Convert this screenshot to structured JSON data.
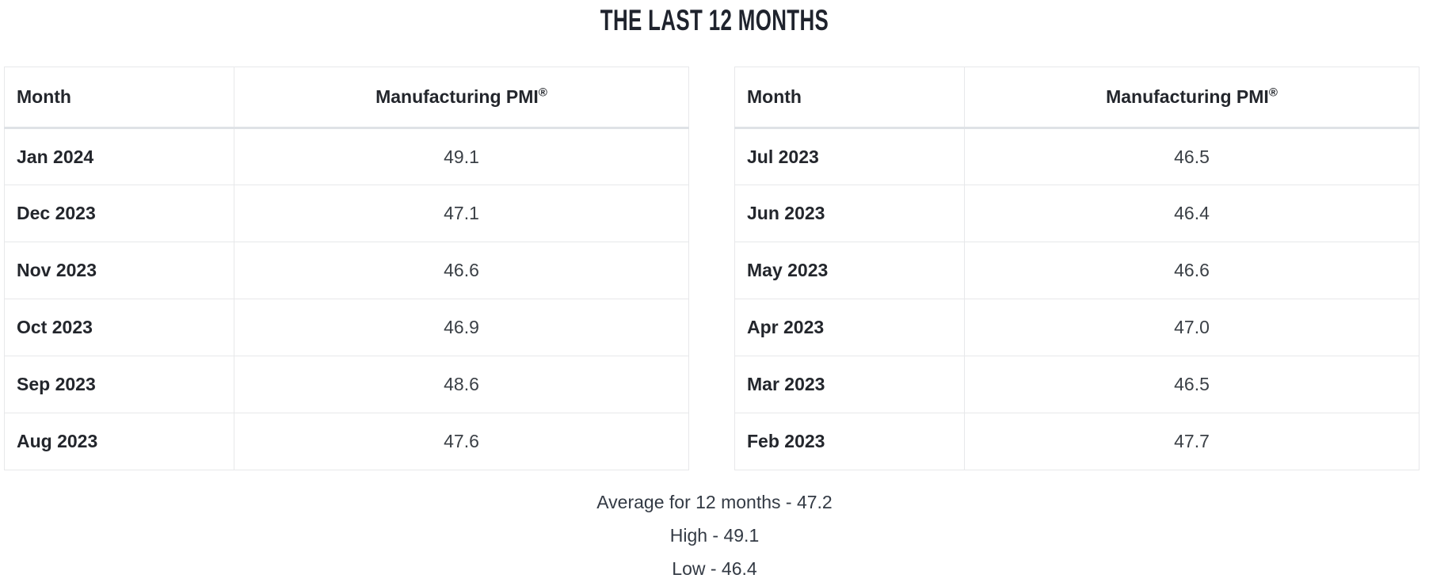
{
  "title": "THE LAST 12 MONTHS",
  "tables": {
    "left": {
      "headers": {
        "month": "Month",
        "pmi": "Manufacturing PMI",
        "trademark": "®"
      },
      "rows": [
        {
          "month": "Jan 2024",
          "value": "49.1"
        },
        {
          "month": "Dec 2023",
          "value": "47.1"
        },
        {
          "month": "Nov 2023",
          "value": "46.6"
        },
        {
          "month": "Oct 2023",
          "value": "46.9"
        },
        {
          "month": "Sep 2023",
          "value": "48.6"
        },
        {
          "month": "Aug 2023",
          "value": "47.6"
        }
      ]
    },
    "right": {
      "headers": {
        "month": "Month",
        "pmi": "Manufacturing PMI",
        "trademark": "®"
      },
      "rows": [
        {
          "month": "Jul 2023",
          "value": "46.5"
        },
        {
          "month": "Jun 2023",
          "value": "46.4"
        },
        {
          "month": "May 2023",
          "value": "46.6"
        },
        {
          "month": "Apr 2023",
          "value": "47.0"
        },
        {
          "month": "Mar 2023",
          "value": "46.5"
        },
        {
          "month": "Feb 2023",
          "value": "47.7"
        }
      ]
    }
  },
  "summary": {
    "average": "Average for 12 months - 47.2",
    "high": "High - 49.1",
    "low": "Low - 46.4"
  },
  "colors": {
    "title_text": "#1f232d",
    "body_text": "#3b4046",
    "bold_text": "#23262c",
    "border": "#e7e8ea",
    "header_underline": "#dfe2e6",
    "background": "#ffffff"
  }
}
